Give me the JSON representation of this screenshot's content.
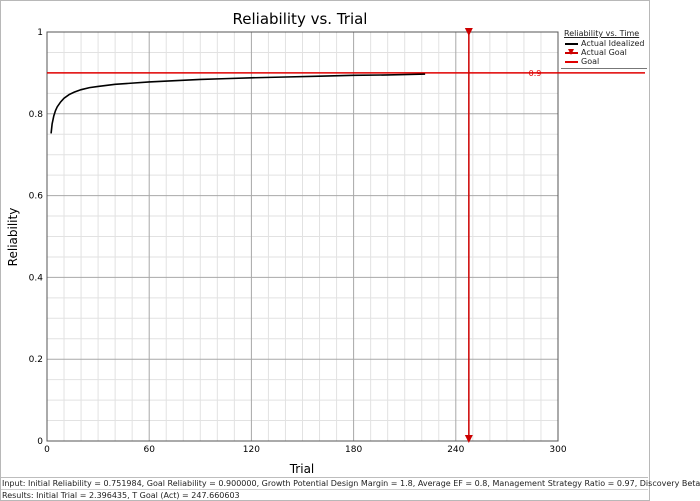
{
  "chart_data": {
    "type": "line",
    "title": "Reliability vs. Trial",
    "xlabel": "Trial",
    "ylabel": "Reliability",
    "xlim": [
      0,
      300
    ],
    "ylim": [
      0,
      1
    ],
    "x_ticks": [
      "0",
      "60",
      "120",
      "180",
      "240",
      "300"
    ],
    "y_ticks": [
      "0",
      "0.2",
      "0.4",
      "0.6",
      "0.8",
      "1"
    ],
    "grid": true,
    "legend_position": "right",
    "legend_title": "Reliability vs. Time",
    "series": [
      {
        "name": "Actual Idealized",
        "color": "#000000",
        "x": [
          2.4,
          3,
          4,
          5,
          6,
          8,
          10,
          13,
          16,
          20,
          25,
          30,
          40,
          50,
          60,
          75,
          90,
          105,
          120,
          140,
          160,
          180,
          200,
          222
        ],
        "y": [
          0.752,
          0.775,
          0.795,
          0.808,
          0.817,
          0.829,
          0.838,
          0.847,
          0.853,
          0.859,
          0.864,
          0.867,
          0.872,
          0.875,
          0.878,
          0.881,
          0.884,
          0.886,
          0.888,
          0.89,
          0.892,
          0.894,
          0.895,
          0.897
        ]
      },
      {
        "name": "Actual Goal",
        "color": "#cc0000",
        "x": 247.660603
      },
      {
        "name": "Goal",
        "color": "#e00000",
        "y": 0.9,
        "label": "0.9"
      }
    ]
  },
  "footer": {
    "input": "Input: Initial Reliability = 0.751984, Goal Reliability = 0.900000, Growth Potential Design Margin = 1.8, Average EF = 0.8, Management Strategy Ratio = 0.97, Discovery Beta",
    "results": "Results: Initial Trial = 2.396435, T Goal (Act) = 247.660603"
  }
}
